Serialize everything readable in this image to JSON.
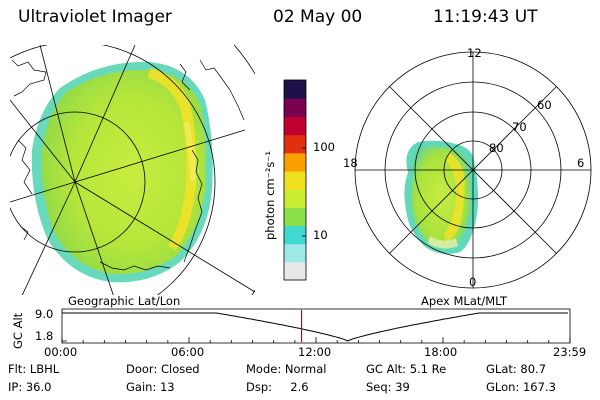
{
  "header": {
    "instrument": "Ultraviolet Imager",
    "date": "02 May 00",
    "time": "11:19:43 UT"
  },
  "left_panel": {
    "label": "Geographic Lat/Lon"
  },
  "right_panel": {
    "label": "Apex MLat/MLT",
    "lat_labels": [
      "60",
      "70",
      "80"
    ],
    "mlt_labels": {
      "top": "12",
      "left": "18",
      "right": "6",
      "bottom": "0"
    }
  },
  "colorbar": {
    "unit": "photon cm⁻²s⁻¹",
    "tick_labels": [
      "100",
      "10"
    ],
    "ticks": [
      100,
      10
    ],
    "log_scale": true,
    "colors": [
      "#e8e8e8",
      "#9fe8e8",
      "#40d8d0",
      "#8ce04a",
      "#c8ec30",
      "#f0e020",
      "#f7a000",
      "#e03010",
      "#c00030",
      "#7a0050",
      "#20104a"
    ]
  },
  "altitude_plot": {
    "ylabel": "GC Alt",
    "y_ticks": [
      "9.0",
      "1.8"
    ],
    "x_ticks": [
      "00:00",
      "06:00",
      "12:00",
      "18:00",
      "23:59"
    ],
    "current_time": "11:19",
    "marker_color": "#cc0000"
  },
  "info": {
    "row1": [
      {
        "key": "flt",
        "text": "Flt: LBHL"
      },
      {
        "key": "door",
        "text": "Door: Closed"
      },
      {
        "key": "mode",
        "text": "Mode: Normal"
      },
      {
        "key": "gcalt",
        "text": "GC Alt: 5.1 Re"
      },
      {
        "key": "glat",
        "text": "GLat: 80.7"
      }
    ],
    "row2": [
      {
        "key": "ip",
        "text": "IP: 36.0"
      },
      {
        "key": "gain",
        "text": "Gain: 13"
      },
      {
        "key": "dsp",
        "text": "Dsp:     2.6"
      },
      {
        "key": "seq",
        "text": "Seq: 39"
      },
      {
        "key": "glon",
        "text": "GLon: 167.3"
      }
    ]
  }
}
